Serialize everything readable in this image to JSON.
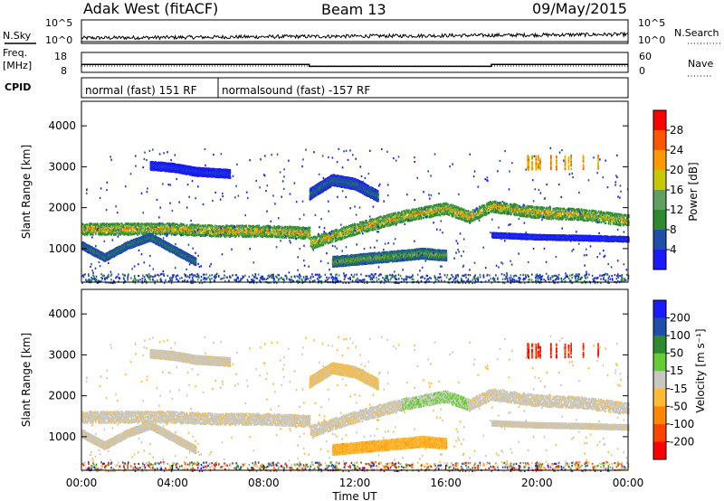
{
  "header": {
    "station": "Adak West (fitACF)",
    "beam": "Beam 13",
    "date": "09/May/2015"
  },
  "summary": {
    "nsky_label": "N.Sky",
    "nsearch_label": "N.Search",
    "left_ticks": [
      "10^5",
      "10^0"
    ],
    "right_ticks": [
      "10^5",
      "10^0"
    ],
    "freq_label": "Freq.",
    "freq_unit": "[MHz]",
    "freq_ticks": [
      18,
      8
    ],
    "nave_label": "Nave",
    "nave_ticks": [
      60,
      0
    ],
    "cpid_label": "CPID",
    "cpid_segments": [
      {
        "label": "normal (fast) 151 RF",
        "start_h": 0,
        "end_h": 6
      },
      {
        "label": "normalsound (fast) -157 RF",
        "start_h": 6,
        "end_h": 24
      }
    ],
    "freq_segments": [
      {
        "start_h": 0,
        "end_h": 10,
        "mhz": 12
      },
      {
        "start_h": 10,
        "end_h": 18,
        "mhz": 11
      },
      {
        "start_h": 18,
        "end_h": 24,
        "mhz": 12
      }
    ]
  },
  "colors": {
    "power_scale": [
      "#1a1aff",
      "#1f4fa8",
      "#2e8a2e",
      "#5fa05f",
      "#c8c800",
      "#ff9900",
      "#ff5500",
      "#ff0000"
    ],
    "velocity_scale": [
      "#1a1aff",
      "#1f4fa8",
      "#2e8a2e",
      "#66cc33",
      "#c8c8c0",
      "#ffbb33",
      "#ff8800",
      "#ff4400",
      "#ff0000"
    ]
  },
  "chart_data": [
    {
      "type": "heatmap",
      "title": "",
      "xlabel": "",
      "ylabel": "Slant Range [km]",
      "xlim": [
        0,
        24
      ],
      "ylim": [
        180,
        4600
      ],
      "y_ticks": [
        1000,
        2000,
        3000,
        4000
      ],
      "colorbar_label": "Power [dB]",
      "colorbar_ticks": [
        4,
        8,
        12,
        16,
        20,
        24,
        28
      ],
      "colorbar_range": [
        0,
        32
      ],
      "bands": [
        {
          "name": "main",
          "x": [
            0,
            2,
            4,
            6,
            8,
            10,
            10.05,
            12,
            14,
            16,
            17,
            18,
            20,
            22,
            24
          ],
          "y": [
            1500,
            1500,
            1500,
            1450,
            1450,
            1400,
            1150,
            1500,
            1800,
            2000,
            1800,
            2050,
            1900,
            1850,
            1700
          ],
          "width": 280,
          "peak": 26
        },
        {
          "name": "lower",
          "x": [
            0,
            1,
            2,
            3,
            4,
            5
          ],
          "y": [
            1100,
            800,
            1100,
            1300,
            1000,
            700
          ],
          "width": 180,
          "peak": 12
        },
        {
          "name": "upper",
          "x": [
            10,
            11,
            12,
            13
          ],
          "y": [
            2350,
            2700,
            2600,
            2300
          ],
          "width": 260,
          "peak": 10
        },
        {
          "name": "late-low",
          "x": [
            11,
            13,
            15,
            16
          ],
          "y": [
            700,
            800,
            900,
            850
          ],
          "width": 250,
          "peak": 18
        },
        {
          "name": "high",
          "x": [
            3,
            4,
            5,
            6.5
          ],
          "y": [
            3050,
            3000,
            2900,
            2850
          ],
          "width": 200,
          "peak": 6
        },
        {
          "name": "evening-low",
          "x": [
            18,
            20,
            22,
            24
          ],
          "y": [
            1350,
            1300,
            1280,
            1250
          ],
          "width": 120,
          "peak": 6
        }
      ]
    },
    {
      "type": "heatmap",
      "title": "",
      "xlabel": "Time UT",
      "ylabel": "Slant Range [km]",
      "xlim": [
        0,
        24
      ],
      "ylim": [
        180,
        4600
      ],
      "x_ticks": [
        "00:00",
        "04:00",
        "08:00",
        "12:00",
        "16:00",
        "20:00",
        "00:00"
      ],
      "y_ticks": [
        1000,
        2000,
        3000,
        4000
      ],
      "colorbar_label": "Velocity [m s⁻¹]",
      "colorbar_ticks": [
        200,
        100,
        50,
        15,
        -15,
        -50,
        -100,
        -200
      ],
      "colorbar_range": [
        -250,
        250
      ]
    }
  ]
}
